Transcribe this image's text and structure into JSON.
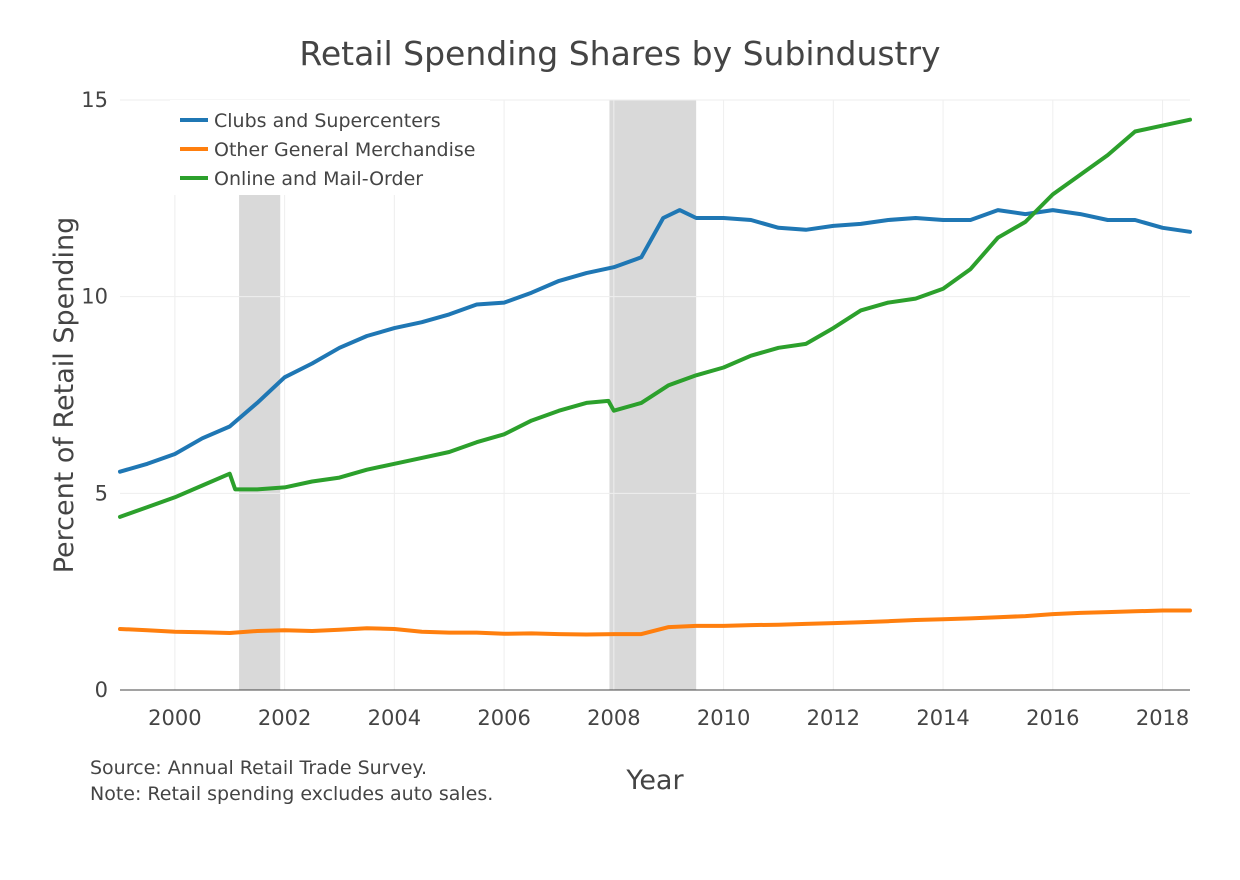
{
  "chart_data": {
    "type": "line",
    "title": "Retail Spending Shares by Subindustry",
    "xlabel": "Year",
    "ylabel": "Percent of Retail Spending",
    "xlim": [
      1999.0,
      2018.5
    ],
    "ylim": [
      0,
      15
    ],
    "x_ticks": [
      2000,
      2002,
      2004,
      2006,
      2008,
      2010,
      2012,
      2014,
      2016,
      2018
    ],
    "y_ticks": [
      0,
      5,
      10,
      15
    ],
    "grid": true,
    "legend_position": "top-left",
    "recession_shading": [
      [
        2001.17,
        2001.92
      ],
      [
        2007.92,
        2009.5
      ]
    ],
    "series": [
      {
        "name": "Clubs and Supercenters",
        "color": "#1f77b4",
        "x": [
          1999.0,
          1999.5,
          2000.0,
          2000.5,
          2001.0,
          2001.5,
          2002.0,
          2002.5,
          2003.0,
          2003.5,
          2004.0,
          2004.5,
          2005.0,
          2005.5,
          2006.0,
          2006.5,
          2007.0,
          2007.5,
          2008.0,
          2008.5,
          2008.9,
          2009.2,
          2009.5,
          2010.0,
          2010.5,
          2011.0,
          2011.5,
          2012.0,
          2012.5,
          2013.0,
          2013.5,
          2014.0,
          2014.5,
          2015.0,
          2015.5,
          2016.0,
          2016.5,
          2017.0,
          2017.5,
          2018.0,
          2018.5
        ],
        "y": [
          5.55,
          5.75,
          6.0,
          6.4,
          6.7,
          7.3,
          7.95,
          8.3,
          8.7,
          9.0,
          9.2,
          9.35,
          9.55,
          9.8,
          9.85,
          10.1,
          10.4,
          10.6,
          10.75,
          11.0,
          12.0,
          12.2,
          12.0,
          12.0,
          11.95,
          11.75,
          11.7,
          11.8,
          11.85,
          11.95,
          12.0,
          11.95,
          11.95,
          12.2,
          12.1,
          12.2,
          12.1,
          11.95,
          11.95,
          11.75,
          11.65
        ]
      },
      {
        "name": "Other General Merchandise",
        "color": "#ff7f0e",
        "x": [
          1999.0,
          1999.5,
          2000.0,
          2000.5,
          2001.0,
          2001.5,
          2002.0,
          2002.5,
          2003.0,
          2003.5,
          2004.0,
          2004.5,
          2005.0,
          2005.5,
          2006.0,
          2006.5,
          2007.0,
          2007.5,
          2008.0,
          2008.5,
          2009.0,
          2009.5,
          2010.0,
          2010.5,
          2011.0,
          2011.5,
          2012.0,
          2012.5,
          2013.0,
          2013.5,
          2014.0,
          2014.5,
          2015.0,
          2015.5,
          2016.0,
          2016.5,
          2017.0,
          2017.5,
          2018.0,
          2018.5
        ],
        "y": [
          1.55,
          1.52,
          1.48,
          1.47,
          1.45,
          1.5,
          1.52,
          1.5,
          1.53,
          1.57,
          1.55,
          1.48,
          1.46,
          1.46,
          1.43,
          1.44,
          1.42,
          1.41,
          1.42,
          1.42,
          1.6,
          1.63,
          1.63,
          1.65,
          1.66,
          1.68,
          1.7,
          1.72,
          1.75,
          1.78,
          1.8,
          1.82,
          1.85,
          1.88,
          1.93,
          1.96,
          1.98,
          2.0,
          2.02,
          2.02
        ]
      },
      {
        "name": "Online and Mail-Order",
        "color": "#2ca02c",
        "x": [
          1999.0,
          1999.5,
          2000.0,
          2000.5,
          2001.0,
          2001.1,
          2001.5,
          2002.0,
          2002.5,
          2003.0,
          2003.5,
          2004.0,
          2004.5,
          2005.0,
          2005.5,
          2006.0,
          2006.5,
          2007.0,
          2007.5,
          2007.9,
          2008.0,
          2008.5,
          2009.0,
          2009.5,
          2010.0,
          2010.5,
          2011.0,
          2011.5,
          2012.0,
          2012.5,
          2013.0,
          2013.5,
          2014.0,
          2014.5,
          2015.0,
          2015.5,
          2016.0,
          2016.5,
          2017.0,
          2017.5,
          2018.0,
          2018.5
        ],
        "y": [
          4.4,
          4.65,
          4.9,
          5.2,
          5.5,
          5.1,
          5.1,
          5.15,
          5.3,
          5.4,
          5.6,
          5.75,
          5.9,
          6.05,
          6.3,
          6.5,
          6.85,
          7.1,
          7.3,
          7.35,
          7.1,
          7.3,
          7.75,
          8.0,
          8.2,
          8.5,
          8.7,
          8.8,
          9.2,
          9.65,
          9.85,
          9.95,
          10.2,
          10.7,
          11.5,
          11.9,
          12.6,
          13.1,
          13.6,
          14.2,
          14.35,
          14.5
        ]
      }
    ]
  },
  "source_note": "Source: Annual Retail Trade Survey.",
  "footnote": "Note: Retail spending excludes auto sales."
}
